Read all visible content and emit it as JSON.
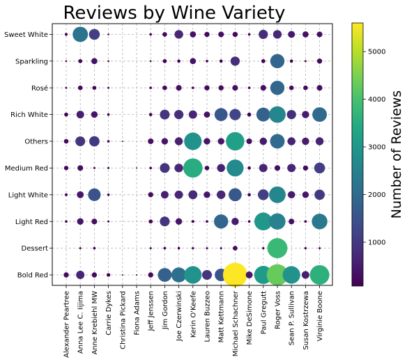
{
  "chart_data": {
    "type": "scatter",
    "title": "Reviews by Wine Variety",
    "xlabel": "",
    "ylabel": "",
    "grid": true,
    "x_categories": [
      "Alexander Peartree",
      "Anna Lee C. Iijima",
      "Anne Krebiehl MW",
      "Carrie Dykes",
      "Christina Pickard",
      "Fiona Adams",
      "Jeff Jenssen",
      "Jim Gordon",
      "Joe Czerwinski",
      "Kerin O'Keefe",
      "Lauren Buzzeo",
      "Matt Kettmann",
      "Michael Schachner",
      "Mike DeSimone",
      "Paul Gregutt",
      "Roger Voss",
      "Sean P. Sullivan",
      "Susan Kostrzewa",
      "Virginie Boone"
    ],
    "y_categories": [
      "Bold Red",
      "Dessert",
      "Light Red",
      "Light White",
      "Medium Red",
      "Others",
      "Rich White",
      "Rosé",
      "Sparkling",
      "Sweet White"
    ],
    "encoding": {
      "size": "Number of Reviews",
      "color": "Number of Reviews"
    },
    "colorbar": {
      "label": "Number of Reviews",
      "range": [
        80,
        5600
      ],
      "ticks": [
        1000,
        2000,
        3000,
        4000,
        5000
      ],
      "colormap": "viridis"
    },
    "points": [
      [
        "Alexander Peartree",
        "Bold Red",
        250
      ],
      [
        "Anna Lee C. Iijima",
        "Bold Red",
        650
      ],
      [
        "Anne Krebiehl MW",
        "Bold Red",
        250
      ],
      [
        "Carrie Dykes",
        "Bold Red",
        130
      ],
      [
        "Christina Pickard",
        "Bold Red",
        20
      ],
      [
        "Fiona Adams",
        "Bold Red",
        20
      ],
      [
        "Jeff Jenssen",
        "Bold Red",
        250
      ],
      [
        "Jim Gordon",
        "Bold Red",
        1800
      ],
      [
        "Joe Czerwinski",
        "Bold Red",
        2100
      ],
      [
        "Kerin O'Keefe",
        "Bold Red",
        2900
      ],
      [
        "Lauren Buzzeo",
        "Bold Red",
        900
      ],
      [
        "Matt Kettmann",
        "Bold Red",
        1500
      ],
      [
        "Michael Schachner",
        "Bold Red",
        5600
      ],
      [
        "Mike DeSimone",
        "Bold Red",
        450
      ],
      [
        "Paul Gregutt",
        "Bold Red",
        3100
      ],
      [
        "Roger Voss",
        "Bold Red",
        4300
      ],
      [
        "Sean P. Sullivan",
        "Bold Red",
        2900
      ],
      [
        "Susan Kostrzewa",
        "Bold Red",
        550
      ],
      [
        "Virginie Boone",
        "Bold Red",
        3600
      ],
      [
        "Anna Lee C. Iijima",
        "Dessert",
        40
      ],
      [
        "Anne Krebiehl MW",
        "Dessert",
        60
      ],
      [
        "Jeff Jenssen",
        "Dessert",
        40
      ],
      [
        "Jim Gordon",
        "Dessert",
        60
      ],
      [
        "Joe Czerwinski",
        "Dessert",
        60
      ],
      [
        "Kerin O'Keefe",
        "Dessert",
        50
      ],
      [
        "Lauren Buzzeo",
        "Dessert",
        40
      ],
      [
        "Matt Kettmann",
        "Dessert",
        40
      ],
      [
        "Michael Schachner",
        "Dessert",
        200
      ],
      [
        "Paul Gregutt",
        "Dessert",
        50
      ],
      [
        "Roger Voss",
        "Dessert",
        3800
      ],
      [
        "Susan Kostrzewa",
        "Dessert",
        50
      ],
      [
        "Virginie Boone",
        "Dessert",
        40
      ],
      [
        "Alexander Peartree",
        "Light Red",
        60
      ],
      [
        "Anna Lee C. Iijima",
        "Light Red",
        400
      ],
      [
        "Anne Krebiehl MW",
        "Light Red",
        300
      ],
      [
        "Carrie Dykes",
        "Light Red",
        40
      ],
      [
        "Jeff Jenssen",
        "Light Red",
        150
      ],
      [
        "Jim Gordon",
        "Light Red",
        900
      ],
      [
        "Joe Czerwinski",
        "Light Red",
        400
      ],
      [
        "Kerin O'Keefe",
        "Light Red",
        80
      ],
      [
        "Lauren Buzzeo",
        "Light Red",
        60
      ],
      [
        "Matt Kettmann",
        "Light Red",
        1900
      ],
      [
        "Michael Schachner",
        "Light Red",
        500
      ],
      [
        "Mike DeSimone",
        "Light Red",
        60
      ],
      [
        "Paul Gregutt",
        "Light Red",
        3000
      ],
      [
        "Roger Voss",
        "Light Red",
        2500
      ],
      [
        "Sean P. Sullivan",
        "Light Red",
        300
      ],
      [
        "Susan Kostrzewa",
        "Light Red",
        60
      ],
      [
        "Virginie Boone",
        "Light Red",
        2300
      ],
      [
        "Alexander Peartree",
        "Light White",
        80
      ],
      [
        "Anna Lee C. Iijima",
        "Light White",
        450
      ],
      [
        "Anne Krebiehl MW",
        "Light White",
        1500
      ],
      [
        "Carrie Dykes",
        "Light White",
        60
      ],
      [
        "Jeff Jenssen",
        "Light White",
        250
      ],
      [
        "Jim Gordon",
        "Light White",
        550
      ],
      [
        "Joe Czerwinski",
        "Light White",
        650
      ],
      [
        "Kerin O'Keefe",
        "Light White",
        750
      ],
      [
        "Lauren Buzzeo",
        "Light White",
        400
      ],
      [
        "Matt Kettmann",
        "Light White",
        700
      ],
      [
        "Michael Schachner",
        "Light White",
        1600
      ],
      [
        "Mike DeSimone",
        "Light White",
        100
      ],
      [
        "Paul Gregutt",
        "Light White",
        1100
      ],
      [
        "Roger Voss",
        "Light White",
        2600
      ],
      [
        "Sean P. Sullivan",
        "Light White",
        500
      ],
      [
        "Susan Kostrzewa",
        "Light White",
        400
      ],
      [
        "Virginie Boone",
        "Light White",
        1000
      ],
      [
        "Alexander Peartree",
        "Medium Red",
        180
      ],
      [
        "Anna Lee C. Iijima",
        "Medium Red",
        300
      ],
      [
        "Anne Krebiehl MW",
        "Medium Red",
        40
      ],
      [
        "Carrie Dykes",
        "Medium Red",
        40
      ],
      [
        "Fiona Adams",
        "Medium Red",
        20
      ],
      [
        "Jeff Jenssen",
        "Medium Red",
        60
      ],
      [
        "Jim Gordon",
        "Medium Red",
        900
      ],
      [
        "Joe Czerwinski",
        "Medium Red",
        700
      ],
      [
        "Kerin O'Keefe",
        "Medium Red",
        3500
      ],
      [
        "Lauren Buzzeo",
        "Medium Red",
        200
      ],
      [
        "Matt Kettmann",
        "Medium Red",
        600
      ],
      [
        "Michael Schachner",
        "Medium Red",
        2700
      ],
      [
        "Mike DeSimone",
        "Medium Red",
        100
      ],
      [
        "Paul Gregutt",
        "Medium Red",
        650
      ],
      [
        "Roger Voss",
        "Medium Red",
        300
      ],
      [
        "Sean P. Sullivan",
        "Medium Red",
        650
      ],
      [
        "Susan Kostrzewa",
        "Medium Red",
        250
      ],
      [
        "Virginie Boone",
        "Medium Red",
        1100
      ],
      [
        "Alexander Peartree",
        "Others",
        200
      ],
      [
        "Anna Lee C. Iijima",
        "Others",
        900
      ],
      [
        "Anne Krebiehl MW",
        "Others",
        1000
      ],
      [
        "Carrie Dykes",
        "Others",
        60
      ],
      [
        "Christina Pickard",
        "Others",
        20
      ],
      [
        "Jeff Jenssen",
        "Others",
        300
      ],
      [
        "Jim Gordon",
        "Others",
        400
      ],
      [
        "Joe Czerwinski",
        "Others",
        600
      ],
      [
        "Kerin O'Keefe",
        "Others",
        2900
      ],
      [
        "Lauren Buzzeo",
        "Others",
        400
      ],
      [
        "Matt Kettmann",
        "Others",
        400
      ],
      [
        "Michael Schachner",
        "Others",
        3200
      ],
      [
        "Mike DeSimone",
        "Others",
        300
      ],
      [
        "Paul Gregutt",
        "Others",
        500
      ],
      [
        "Roger Voss",
        "Others",
        2000
      ],
      [
        "Sean P. Sullivan",
        "Others",
        600
      ],
      [
        "Susan Kostrzewa",
        "Others",
        500
      ],
      [
        "Virginie Boone",
        "Others",
        600
      ],
      [
        "Alexander Peartree",
        "Rich White",
        150
      ],
      [
        "Anna Lee C. Iijima",
        "Rich White",
        550
      ],
      [
        "Anne Krebiehl MW",
        "Rich White",
        400
      ],
      [
        "Carrie Dykes",
        "Rich White",
        60
      ],
      [
        "Jeff Jenssen",
        "Rich White",
        100
      ],
      [
        "Jim Gordon",
        "Rich White",
        900
      ],
      [
        "Joe Czerwinski",
        "Rich White",
        800
      ],
      [
        "Kerin O'Keefe",
        "Rich White",
        650
      ],
      [
        "Lauren Buzzeo",
        "Rich White",
        350
      ],
      [
        "Matt Kettmann",
        "Rich White",
        1600
      ],
      [
        "Michael Schachner",
        "Rich White",
        1200
      ],
      [
        "Mike DeSimone",
        "Rich White",
        150
      ],
      [
        "Paul Gregutt",
        "Rich White",
        1800
      ],
      [
        "Roger Voss",
        "Rich White",
        2600
      ],
      [
        "Sean P. Sullivan",
        "Rich White",
        800
      ],
      [
        "Susan Kostrzewa",
        "Rich White",
        500
      ],
      [
        "Virginie Boone",
        "Rich White",
        2000
      ],
      [
        "Alexander Peartree",
        "Rosé",
        40
      ],
      [
        "Anna Lee C. Iijima",
        "Rosé",
        200
      ],
      [
        "Anne Krebiehl MW",
        "Rosé",
        150
      ],
      [
        "Carrie Dykes",
        "Rosé",
        40
      ],
      [
        "Jeff Jenssen",
        "Rosé",
        60
      ],
      [
        "Jim Gordon",
        "Rosé",
        200
      ],
      [
        "Joe Czerwinski",
        "Rosé",
        300
      ],
      [
        "Kerin O'Keefe",
        "Rosé",
        60
      ],
      [
        "Lauren Buzzeo",
        "Rosé",
        250
      ],
      [
        "Matt Kettmann",
        "Rosé",
        250
      ],
      [
        "Michael Schachner",
        "Rosé",
        300
      ],
      [
        "Mike DeSimone",
        "Rosé",
        60
      ],
      [
        "Paul Gregutt",
        "Rosé",
        300
      ],
      [
        "Roger Voss",
        "Rosé",
        1900
      ],
      [
        "Sean P. Sullivan",
        "Rosé",
        200
      ],
      [
        "Susan Kostrzewa",
        "Rosé",
        200
      ],
      [
        "Virginie Boone",
        "Rosé",
        300
      ],
      [
        "Alexander Peartree",
        "Sparkling",
        30
      ],
      [
        "Anna Lee C. Iijima",
        "Sparkling",
        150
      ],
      [
        "Anne Krebiehl MW",
        "Sparkling",
        350
      ],
      [
        "Carrie Dykes",
        "Sparkling",
        30
      ],
      [
        "Jeff Jenssen",
        "Sparkling",
        30
      ],
      [
        "Jim Gordon",
        "Sparkling",
        150
      ],
      [
        "Joe Czerwinski",
        "Sparkling",
        100
      ],
      [
        "Kerin O'Keefe",
        "Sparkling",
        350
      ],
      [
        "Lauren Buzzeo",
        "Sparkling",
        60
      ],
      [
        "Matt Kettmann",
        "Sparkling",
        100
      ],
      [
        "Michael Schachner",
        "Sparkling",
        800
      ],
      [
        "Paul Gregutt",
        "Sparkling",
        150
      ],
      [
        "Roger Voss",
        "Sparkling",
        1900
      ],
      [
        "Sean P. Sullivan",
        "Sparkling",
        100
      ],
      [
        "Susan Kostrzewa",
        "Sparkling",
        40
      ],
      [
        "Virginie Boone",
        "Sparkling",
        250
      ],
      [
        "Alexander Peartree",
        "Sweet White",
        80
      ],
      [
        "Anna Lee C. Iijima",
        "Sweet White",
        2200
      ],
      [
        "Anne Krebiehl MW",
        "Sweet White",
        1100
      ],
      [
        "Carrie Dykes",
        "Sweet White",
        30
      ],
      [
        "Jeff Jenssen",
        "Sweet White",
        60
      ],
      [
        "Jim Gordon",
        "Sweet White",
        200
      ],
      [
        "Joe Czerwinski",
        "Sweet White",
        700
      ],
      [
        "Kerin O'Keefe",
        "Sweet White",
        350
      ],
      [
        "Lauren Buzzeo",
        "Sweet White",
        250
      ],
      [
        "Matt Kettmann",
        "Sweet White",
        300
      ],
      [
        "Michael Schachner",
        "Sweet White",
        250
      ],
      [
        "Mike DeSimone",
        "Sweet White",
        60
      ],
      [
        "Paul Gregutt",
        "Sweet White",
        800
      ],
      [
        "Roger Voss",
        "Sweet White",
        700
      ],
      [
        "Sean P. Sullivan",
        "Sweet White",
        450
      ],
      [
        "Susan Kostrzewa",
        "Sweet White",
        350
      ],
      [
        "Virginie Boone",
        "Sweet White",
        300
      ]
    ]
  }
}
